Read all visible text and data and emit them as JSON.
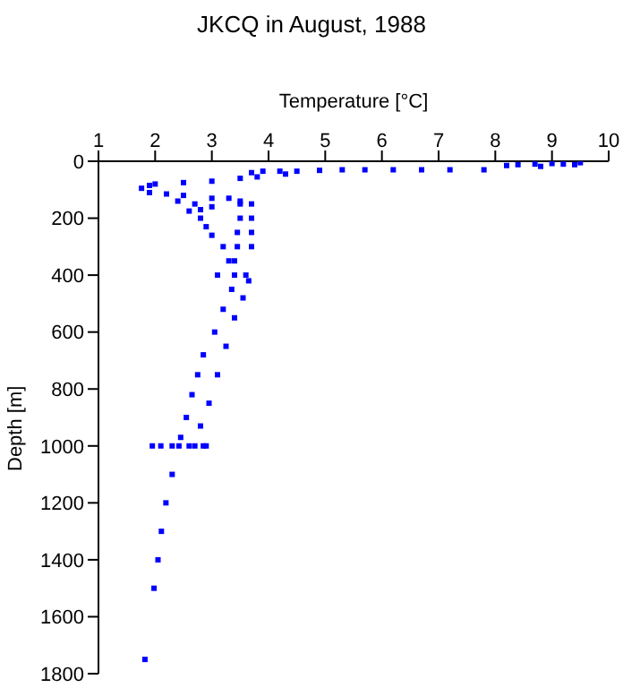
{
  "chart_data": {
    "type": "scatter",
    "title": "JKCQ in August, 1988",
    "xlabel": "Temperature [°C]",
    "ylabel": "Depth [m]",
    "xlim": [
      1,
      10
    ],
    "xticks": [
      1,
      2,
      3,
      4,
      5,
      6,
      7,
      8,
      9,
      10
    ],
    "ylim": [
      1800,
      0
    ],
    "yticks": [
      0,
      200,
      400,
      600,
      800,
      1000,
      1200,
      1400,
      1600,
      1800
    ],
    "grid": false,
    "legend": false,
    "marker": "square",
    "series": [
      {
        "color": "#0000ff",
        "x": [
          9.5,
          9.2,
          9.0,
          8.7,
          8.4,
          8.2,
          8.8,
          9.4,
          7.8,
          7.2,
          6.7,
          6.2,
          5.7,
          5.3,
          4.9,
          4.5,
          4.2,
          3.9,
          3.7,
          4.3,
          3.8,
          3.5,
          3.0,
          2.5,
          2.0,
          1.9,
          1.76,
          1.9,
          2.2,
          2.5,
          3.0,
          3.3,
          3.5,
          2.4,
          2.7,
          2.8,
          3.0,
          2.6,
          2.8,
          2.9,
          3.0,
          3.2,
          3.3,
          3.4,
          3.35,
          3.2,
          3.05,
          2.85,
          2.75,
          2.65,
          2.55,
          2.45,
          2.42,
          3.5,
          3.5,
          3.45,
          3.45,
          3.4,
          3.65,
          3.55,
          3.4,
          3.25,
          3.1,
          2.95,
          2.8,
          2.7,
          3.7,
          3.7,
          3.7,
          3.7,
          1.95,
          2.1,
          2.3,
          2.6,
          2.85,
          2.9,
          3.1,
          3.6,
          2.3,
          2.19,
          2.11,
          2.05,
          1.98,
          1.82
        ],
        "values": [
          5,
          10,
          8,
          10,
          12,
          15,
          18,
          12,
          30,
          30,
          30,
          30,
          30,
          30,
          32,
          35,
          35,
          35,
          40,
          45,
          55,
          60,
          70,
          75,
          80,
          85,
          95,
          110,
          115,
          120,
          130,
          130,
          140,
          140,
          150,
          170,
          160,
          175,
          200,
          230,
          260,
          300,
          350,
          400,
          450,
          520,
          600,
          680,
          750,
          820,
          900,
          970,
          1000,
          150,
          200,
          250,
          300,
          350,
          420,
          480,
          550,
          650,
          750,
          850,
          930,
          1000,
          150,
          200,
          250,
          300,
          1000,
          1000,
          1000,
          1000,
          1000,
          1000,
          400,
          400,
          1100,
          1200,
          1300,
          1400,
          1500,
          1750
        ]
      }
    ]
  }
}
